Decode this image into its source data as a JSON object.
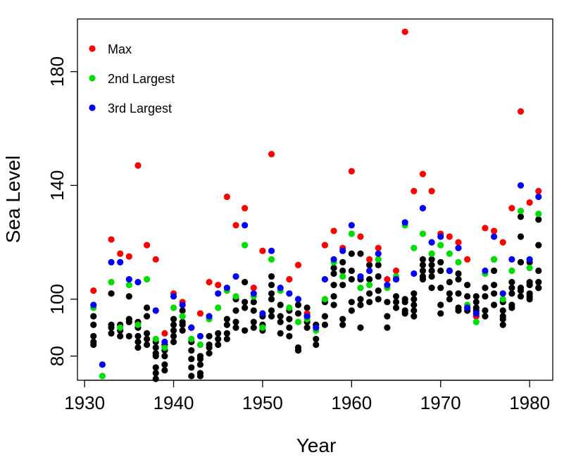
{
  "chart_data": {
    "type": "scatter",
    "title": "",
    "xlabel": "Year",
    "ylabel": "Sea Level",
    "xlim": [
      1929.2,
      1982.6
    ],
    "ylim": [
      71.5,
      198.5
    ],
    "x_ticks": [
      1930,
      1940,
      1950,
      1960,
      1970,
      1980
    ],
    "y_ticks": [
      80,
      100,
      140,
      180
    ],
    "grid": false,
    "legend_position": "top-left",
    "legend": [
      {
        "label": "Max",
        "color": "#ff0000"
      },
      {
        "label": "2nd Largest",
        "color": "#00dd00"
      },
      {
        "label": "3rd Largest",
        "color": "#0000ff"
      }
    ],
    "series": [
      {
        "name": "Max",
        "color": "#ff0000",
        "x": [
          1931,
          1933,
          1934,
          1935,
          1936,
          1937,
          1938,
          1939,
          1940,
          1941,
          1943,
          1944,
          1945,
          1946,
          1947,
          1948,
          1949,
          1950,
          1951,
          1953,
          1954,
          1955,
          1957,
          1958,
          1959,
          1960,
          1961,
          1962,
          1963,
          1964,
          1965,
          1966,
          1967,
          1968,
          1969,
          1970,
          1971,
          1972,
          1973,
          1974,
          1975,
          1976,
          1977,
          1978,
          1979,
          1980,
          1981
        ],
        "y": [
          103,
          121,
          116,
          115,
          147,
          119,
          114,
          88,
          102,
          99,
          95,
          106,
          105,
          136,
          126,
          132,
          104,
          117,
          151,
          107,
          112,
          95,
          119,
          124,
          118,
          145,
          122,
          114,
          118,
          107,
          110,
          194,
          138,
          144,
          138,
          123,
          122,
          120,
          114,
          94,
          125,
          124,
          120,
          132,
          166,
          134,
          138
        ]
      },
      {
        "name": "2nd Largest",
        "color": "#00dd00",
        "x": [
          1931,
          1932,
          1933,
          1934,
          1935,
          1936,
          1937,
          1938,
          1939,
          1940,
          1941,
          1942,
          1943,
          1944,
          1945,
          1946,
          1947,
          1948,
          1949,
          1950,
          1951,
          1952,
          1953,
          1954,
          1955,
          1956,
          1957,
          1958,
          1959,
          1960,
          1961,
          1962,
          1963,
          1964,
          1965,
          1966,
          1967,
          1968,
          1969,
          1970,
          1971,
          1972,
          1973,
          1974,
          1975,
          1976,
          1977,
          1978,
          1979,
          1980,
          1981
        ],
        "y": [
          97,
          73,
          106,
          90,
          105,
          91,
          107,
          86,
          83,
          97,
          94,
          86,
          84,
          93,
          97,
          103,
          101,
          119,
          101,
          90,
          114,
          103,
          97,
          92,
          93,
          89,
          100,
          113,
          108,
          123,
          104,
          105,
          114,
          104,
          108,
          126,
          118,
          123,
          116,
          119,
          116,
          113,
          98,
          92,
          109,
          114,
          100,
          110,
          131,
          111,
          130
        ]
      },
      {
        "name": "3rd Largest",
        "color": "#0000ff",
        "x": [
          1931,
          1932,
          1933,
          1934,
          1935,
          1936,
          1938,
          1939,
          1940,
          1941,
          1942,
          1943,
          1944,
          1945,
          1946,
          1947,
          1948,
          1949,
          1950,
          1951,
          1952,
          1953,
          1954,
          1955,
          1956,
          1957,
          1958,
          1959,
          1960,
          1961,
          1962,
          1963,
          1964,
          1965,
          1966,
          1967,
          1968,
          1969,
          1970,
          1971,
          1972,
          1973,
          1974,
          1975,
          1976,
          1977,
          1978,
          1979,
          1980,
          1981
        ],
        "y": [
          98,
          77,
          113,
          113,
          107,
          106,
          96,
          85,
          101,
          98,
          90,
          87,
          94,
          102,
          104,
          108,
          126,
          102,
          95,
          117,
          104,
          102,
          100,
          94,
          90,
          107,
          114,
          117,
          126,
          108,
          110,
          116,
          105,
          107,
          127,
          109,
          132,
          120,
          122,
          110,
          118,
          97,
          95,
          110,
          122,
          102,
          114,
          140,
          114,
          136
        ]
      },
      {
        "name": "",
        "color": "#000000",
        "x": [
          1931,
          1931,
          1931,
          1931,
          1931,
          1933,
          1933,
          1933,
          1933,
          1934,
          1934,
          1934,
          1935,
          1935,
          1935,
          1935,
          1936,
          1936,
          1936,
          1936,
          1936,
          1937,
          1937,
          1937,
          1937,
          1937,
          1938,
          1938,
          1938,
          1938,
          1938,
          1938,
          1938,
          1939,
          1939,
          1939,
          1939,
          1939,
          1940,
          1940,
          1940,
          1940,
          1940,
          1941,
          1941,
          1941,
          1941,
          1942,
          1942,
          1942,
          1942,
          1942,
          1942,
          1943,
          1943,
          1943,
          1943,
          1943,
          1944,
          1944,
          1944,
          1944,
          1945,
          1945,
          1945,
          1946,
          1946,
          1946,
          1946,
          1947,
          1947,
          1947,
          1947,
          1948,
          1948,
          1948,
          1948,
          1949,
          1949,
          1949,
          1949,
          1950,
          1950,
          1950,
          1951,
          1951,
          1951,
          1951,
          1951,
          1951,
          1952,
          1952,
          1952,
          1952,
          1953,
          1953,
          1953,
          1953,
          1954,
          1954,
          1954,
          1954,
          1955,
          1955,
          1955,
          1955,
          1956,
          1956,
          1956,
          1957,
          1957,
          1957,
          1958,
          1958,
          1958,
          1958,
          1958,
          1959,
          1959,
          1959,
          1959,
          1959,
          1960,
          1960,
          1960,
          1960,
          1960,
          1961,
          1961,
          1961,
          1961,
          1961,
          1962,
          1962,
          1962,
          1962,
          1963,
          1963,
          1963,
          1963,
          1964,
          1964,
          1964,
          1965,
          1965,
          1965,
          1965,
          1966,
          1966,
          1966,
          1966,
          1967,
          1967,
          1967,
          1967,
          1967,
          1968,
          1968,
          1968,
          1968,
          1968,
          1969,
          1969,
          1969,
          1969,
          1969,
          1970,
          1970,
          1970,
          1970,
          1970,
          1971,
          1971,
          1971,
          1971,
          1972,
          1972,
          1972,
          1972,
          1972,
          1973,
          1973,
          1973,
          1973,
          1974,
          1974,
          1974,
          1974,
          1974,
          1975,
          1975,
          1975,
          1975,
          1976,
          1976,
          1976,
          1976,
          1976,
          1977,
          1977,
          1977,
          1977,
          1977,
          1978,
          1978,
          1978,
          1978,
          1978,
          1979,
          1979,
          1979,
          1979,
          1979,
          1979,
          1980,
          1980,
          1980,
          1980,
          1980,
          1980,
          1981,
          1981,
          1981,
          1981,
          1981,
          1981
        ],
        "y": [
          94,
          91,
          87,
          85,
          84,
          102,
          91,
          90,
          88,
          91,
          89,
          87,
          101,
          93,
          92,
          87,
          92,
          90,
          87,
          85,
          83,
          97,
          94,
          88,
          86,
          84,
          85,
          83,
          81,
          80,
          76,
          74,
          72,
          84,
          82,
          80,
          77,
          75,
          93,
          91,
          89,
          87,
          85,
          96,
          92,
          91,
          89,
          90,
          85,
          82,
          79,
          76,
          73,
          80,
          79,
          77,
          74,
          73,
          87,
          84,
          83,
          81,
          88,
          86,
          84,
          93,
          91,
          88,
          86,
          100,
          96,
          92,
          90,
          106,
          99,
          97,
          89,
          99,
          96,
          92,
          90,
          94,
          91,
          89,
          108,
          105,
          102,
          100,
          96,
          94,
          98,
          94,
          92,
          88,
          96,
          93,
          90,
          87,
          98,
          95,
          83,
          82,
          97,
          94,
          92,
          90,
          91,
          86,
          84,
          99,
          94,
          91,
          111,
          109,
          105,
          101,
          98,
          113,
          110,
          105,
          93,
          91,
          116,
          110,
          107,
          99,
          96,
          116,
          107,
          100,
          98,
          90,
          112,
          107,
          102,
          99,
          112,
          108,
          103,
          100,
          99,
          94,
          90,
          107,
          101,
          99,
          97,
          100,
          99,
          96,
          95,
          102,
          100,
          98,
          96,
          94,
          114,
          112,
          110,
          108,
          107,
          114,
          112,
          110,
          108,
          104,
          113,
          110,
          104,
          98,
          95,
          110,
          106,
          102,
          100,
          109,
          107,
          102,
          97,
          96,
          105,
          101,
          97,
          96,
          101,
          99,
          97,
          96,
          94,
          104,
          101,
          96,
          94,
          114,
          110,
          105,
          102,
          98,
          99,
          96,
          94,
          93,
          91,
          106,
          104,
          102,
          98,
          97,
          129,
          122,
          113,
          104,
          103,
          101,
          113,
          106,
          105,
          102,
          101,
          100,
          128,
          119,
          110,
          106,
          104,
          104
        ]
      }
    ]
  }
}
